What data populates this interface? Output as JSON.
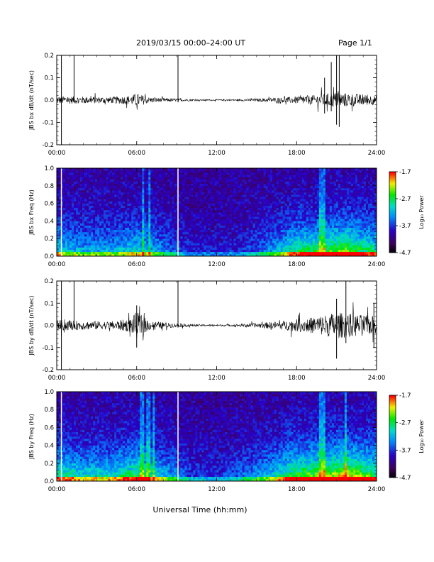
{
  "header": {
    "title": "2019/03/15  00:00–24:00 UT",
    "page": "Page 1/1"
  },
  "xaxis": {
    "label": "Universal Time (hh:mm)",
    "ticks": [
      "00:00",
      "06:00",
      "12:00",
      "18:00",
      "24:00"
    ],
    "range_hours": [
      0,
      24
    ]
  },
  "colorbar": {
    "label": "Log₁₀ Power",
    "ticks": [
      "-1.7",
      "-2.7",
      "-3.7",
      "-4.7"
    ],
    "range": [
      -4.7,
      -1.7
    ],
    "colormap": "rainbow"
  },
  "chart_data": [
    {
      "type": "line",
      "ylabel": "JBS bx dB/dt (nT/sec)",
      "ylim": [
        -0.2,
        0.2
      ],
      "yticks": [
        "0.2",
        "0.1",
        "0.0",
        "-0.1",
        "-0.2"
      ],
      "amplitude_envelope": [
        {
          "t": 0,
          "amp": 0.018
        },
        {
          "t": 2,
          "amp": 0.016
        },
        {
          "t": 4,
          "amp": 0.014
        },
        {
          "t": 5.5,
          "amp": 0.02
        },
        {
          "t": 6,
          "amp": 0.03
        },
        {
          "t": 7,
          "amp": 0.012
        },
        {
          "t": 9,
          "amp": 0.006
        },
        {
          "t": 11,
          "amp": 0.003
        },
        {
          "t": 13,
          "amp": 0.003
        },
        {
          "t": 15,
          "amp": 0.006
        },
        {
          "t": 17,
          "amp": 0.012
        },
        {
          "t": 19,
          "amp": 0.02
        },
        {
          "t": 21,
          "amp": 0.035
        },
        {
          "t": 22,
          "amp": 0.03
        },
        {
          "t": 24,
          "amp": 0.02
        }
      ],
      "spikes": [
        {
          "t": 0.35,
          "min": -0.2,
          "max": 0.2
        },
        {
          "t": 1.3,
          "min": -0.01,
          "max": 0.2
        },
        {
          "t": 9.1,
          "min": -0.01,
          "max": 0.2
        },
        {
          "t": 20.6,
          "min": -0.05,
          "max": 0.17
        },
        {
          "t": 21.0,
          "min": -0.11,
          "max": 0.2
        },
        {
          "t": 21.2,
          "min": -0.12,
          "max": 0.2
        },
        {
          "t": 20.1,
          "min": -0.06,
          "max": 0.1
        }
      ]
    },
    {
      "type": "heatmap",
      "ylabel": "JBS bx Freq (Hz)",
      "ylim": [
        0.0,
        1.0
      ],
      "yticks": [
        "1.0",
        "0.8",
        "0.6",
        "0.4",
        "0.2",
        "0.0"
      ],
      "activity": [
        {
          "t": 0,
          "level": 0.45
        },
        {
          "t": 2,
          "level": 0.35
        },
        {
          "t": 4,
          "level": 0.35
        },
        {
          "t": 6,
          "level": 0.45
        },
        {
          "t": 8,
          "level": 0.3
        },
        {
          "t": 10,
          "level": 0.12
        },
        {
          "t": 12,
          "level": 0.1
        },
        {
          "t": 14,
          "level": 0.15
        },
        {
          "t": 16,
          "level": 0.3
        },
        {
          "t": 18,
          "level": 0.55
        },
        {
          "t": 20,
          "level": 0.6
        },
        {
          "t": 21.5,
          "level": 0.7
        },
        {
          "t": 24,
          "level": 0.5
        }
      ],
      "gaps_hours": [
        0.35,
        9.1
      ],
      "streaks_hours": [
        6.5,
        7.0,
        19.8,
        20.1
      ]
    },
    {
      "type": "line",
      "ylabel": "JBS by dB/dt (nT/sec)",
      "ylim": [
        -0.2,
        0.2
      ],
      "yticks": [
        "0.2",
        "0.1",
        "0.0",
        "-0.1",
        "-0.2"
      ],
      "amplitude_envelope": [
        {
          "t": 0,
          "amp": 0.025
        },
        {
          "t": 2,
          "amp": 0.02
        },
        {
          "t": 4,
          "amp": 0.018
        },
        {
          "t": 5.5,
          "amp": 0.03
        },
        {
          "t": 6,
          "amp": 0.06
        },
        {
          "t": 7,
          "amp": 0.02
        },
        {
          "t": 9,
          "amp": 0.008
        },
        {
          "t": 11,
          "amp": 0.004
        },
        {
          "t": 13,
          "amp": 0.004
        },
        {
          "t": 15,
          "amp": 0.01
        },
        {
          "t": 17,
          "amp": 0.02
        },
        {
          "t": 19,
          "amp": 0.035
        },
        {
          "t": 21,
          "amp": 0.06
        },
        {
          "t": 22.5,
          "amp": 0.05
        },
        {
          "t": 24,
          "amp": 0.04
        }
      ],
      "spikes": [
        {
          "t": 0.35,
          "min": -0.2,
          "max": 0.2
        },
        {
          "t": 1.3,
          "min": -0.01,
          "max": 0.2
        },
        {
          "t": 9.1,
          "min": -0.01,
          "max": 0.2
        },
        {
          "t": 6.0,
          "min": -0.1,
          "max": 0.09
        },
        {
          "t": 21.0,
          "min": -0.15,
          "max": 0.12
        },
        {
          "t": 21.7,
          "min": -0.08,
          "max": 0.2
        },
        {
          "t": 23.8,
          "min": -0.1,
          "max": 0.1
        }
      ]
    },
    {
      "type": "heatmap",
      "ylabel": "JBS by Freq (Hz)",
      "ylim": [
        0.0,
        1.0
      ],
      "yticks": [
        "1.0",
        "0.8",
        "0.6",
        "0.4",
        "0.2",
        "0.0"
      ],
      "activity": [
        {
          "t": 0,
          "level": 0.55
        },
        {
          "t": 2,
          "level": 0.45
        },
        {
          "t": 4,
          "level": 0.45
        },
        {
          "t": 6,
          "level": 0.6
        },
        {
          "t": 8,
          "level": 0.4
        },
        {
          "t": 10,
          "level": 0.18
        },
        {
          "t": 12,
          "level": 0.15
        },
        {
          "t": 14,
          "level": 0.25
        },
        {
          "t": 16,
          "level": 0.4
        },
        {
          "t": 18,
          "level": 0.65
        },
        {
          "t": 20,
          "level": 0.7
        },
        {
          "t": 21.5,
          "level": 0.8
        },
        {
          "t": 24,
          "level": 0.6
        }
      ],
      "gaps_hours": [
        0.35,
        9.1
      ],
      "streaks_hours": [
        6.4,
        6.9,
        7.3,
        19.8,
        20.1,
        21.7
      ]
    }
  ]
}
